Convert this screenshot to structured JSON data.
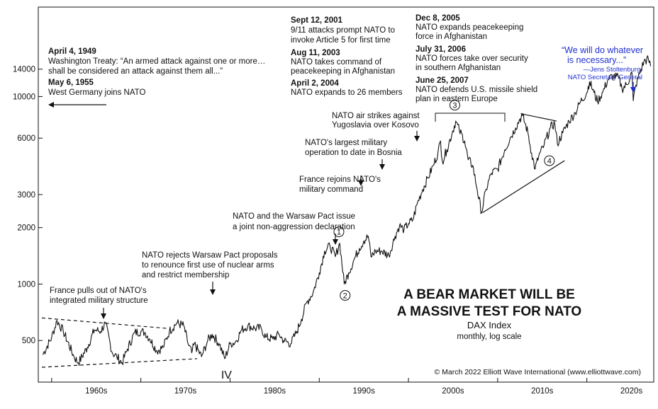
{
  "chart_data": {
    "type": "line",
    "title_lines": [
      "A BEAR MARKET WILL BE",
      "A MASSIVE TEST FOR NATO"
    ],
    "subtitle": "DAX Index",
    "subtitle2": "monthly, log scale",
    "copyright": "© March 2022 Elliott Wave International (www.elliottwave.com)",
    "log_scale": true,
    "ylim": [
      300,
      30000
    ],
    "xlim": [
      1953.5,
      2022.5
    ],
    "y_ticks": [
      {
        "value": 500,
        "label": "500"
      },
      {
        "value": 1000,
        "label": "1000"
      },
      {
        "value": 2000,
        "label": "2000"
      },
      {
        "value": 3000,
        "label": "3000"
      },
      {
        "value": 6000,
        "label": "6000"
      },
      {
        "value": 10000,
        "label": "10000"
      },
      {
        "value": 14000,
        "label": "14000"
      }
    ],
    "x_ticks": [
      1955,
      1965,
      1975,
      1985,
      1995,
      2005,
      2015
    ],
    "x_labels": [
      {
        "value": 1960,
        "label": "1960s"
      },
      {
        "value": 1970,
        "label": "1970s"
      },
      {
        "value": 1980,
        "label": "1980s"
      },
      {
        "value": 1990,
        "label": "1990s"
      },
      {
        "value": 2000,
        "label": "2000s"
      },
      {
        "value": 2010,
        "label": "2010s"
      },
      {
        "value": 2020,
        "label": "2020s"
      }
    ],
    "series": [
      {
        "x": [
          1954.0,
          1955.0,
          1955.6,
          1956.3,
          1957.5,
          1958.0,
          1959.0,
          1959.8,
          1960.5,
          1961.0,
          1961.8,
          1962.3,
          1962.9,
          1963.5,
          1964.3,
          1965.0,
          1965.5,
          1966.0,
          1966.8,
          1967.5,
          1968.2,
          1969.0,
          1969.8,
          1970.3,
          1970.7,
          1971.0,
          1971.8,
          1972.5,
          1973.0,
          1973.8,
          1974.4,
          1975.0,
          1975.6,
          1976.3,
          1977.0,
          1977.8,
          1978.5,
          1979.0,
          1979.8,
          1980.5,
          1981.0,
          1981.8,
          1982.5,
          1983.0,
          1983.6,
          1984.3,
          1985.0,
          1985.6,
          1986.2,
          1986.8,
          1987.3,
          1987.8,
          1988.3,
          1988.9,
          1989.5,
          1990.0,
          1990.5,
          1990.8,
          1991.3,
          1992.0,
          1992.8,
          1993.5,
          1994.0,
          1994.5,
          1995.0,
          1995.5,
          1996.0,
          1996.6,
          1997.2,
          1997.8,
          1998.3,
          1998.6,
          1998.8,
          1999.3,
          1999.9,
          2000.3,
          2000.7,
          2001.3,
          2001.7,
          2002.2,
          2002.7,
          2003.2,
          2003.7,
          2004.3,
          2005.0,
          2005.8,
          2006.4,
          2007.0,
          2007.5,
          2007.8,
          2008.4,
          2008.8,
          2009.2,
          2009.6,
          2010.2,
          2010.9,
          2011.4,
          2011.7,
          2012.3,
          2013.0,
          2013.7,
          2014.3,
          2015.0,
          2015.3,
          2015.8,
          2016.2,
          2016.8,
          2017.4,
          2018.0,
          2018.6,
          2018.95,
          2019.5,
          2019.9,
          2020.05,
          2020.2,
          2020.5,
          2020.9,
          2021.4,
          2021.9,
          2022.15
        ],
        "y": [
          420,
          520,
          640,
          560,
          410,
          380,
          460,
          570,
          560,
          620,
          430,
          410,
          380,
          450,
          550,
          560,
          550,
          510,
          440,
          460,
          560,
          620,
          600,
          480,
          430,
          480,
          410,
          500,
          540,
          480,
          400,
          480,
          490,
          570,
          600,
          580,
          580,
          520,
          510,
          540,
          500,
          480,
          560,
          650,
          800,
          900,
          1150,
          1500,
          1600,
          1400,
          1650,
          1000,
          1150,
          1350,
          1550,
          1700,
          1800,
          1400,
          1500,
          1500,
          1420,
          1800,
          2050,
          1950,
          2100,
          2200,
          2700,
          3200,
          3700,
          4300,
          5000,
          5800,
          4500,
          5200,
          6400,
          7400,
          6600,
          5800,
          4600,
          4300,
          3200,
          2400,
          3200,
          3900,
          4100,
          5200,
          6000,
          6800,
          7600,
          7900,
          6400,
          5000,
          4100,
          4800,
          5500,
          6800,
          7200,
          5600,
          6400,
          7400,
          8200,
          9400,
          10500,
          12000,
          10500,
          9400,
          10600,
          12400,
          12900,
          12500,
          11000,
          11600,
          13000,
          13500,
          9500,
          11500,
          13200,
          15400,
          15800,
          14500
        ]
      }
    ],
    "wave_labels": [
      {
        "label": "1",
        "x": 1987.2,
        "y": 1900
      },
      {
        "label": "2",
        "x": 1987.9,
        "y": 870
      },
      {
        "label": "3",
        "x": 2000.2,
        "y": 9000
      },
      {
        "label": "4",
        "x": 2010.8,
        "y": 4550
      }
    ],
    "wave_label_IV": {
      "label": "IV",
      "x": 1974.6,
      "y": 330
    },
    "annotations": [
      {
        "bold": "April 4, 1949",
        "lines": [
          "Washington Treaty: “An armed attack against one or more…",
          "shall be considered an attack against them all...”"
        ]
      },
      {
        "bold": "May 6, 1955",
        "lines": [
          "West Germany joins NATO"
        ]
      },
      {
        "bold": "Sept 12, 2001",
        "lines": [
          "9/11 attacks prompt NATO to",
          "invoke Article 5 for first time"
        ]
      },
      {
        "bold": "Aug 11, 2003",
        "lines": [
          "NATO takes command of",
          "peacekeeping in Afghanistan"
        ]
      },
      {
        "bold": "April 2, 2004",
        "lines": [
          "NATO expands to 26 members"
        ]
      },
      {
        "bold": "Dec 8, 2005",
        "lines": [
          "NATO expands peacekeeping",
          "force in Afghanistan"
        ]
      },
      {
        "bold": "July 31, 2006",
        "lines": [
          "NATO forces take over security",
          "in southern Afghanistan"
        ]
      },
      {
        "bold": "June 25, 2007",
        "lines": [
          "NATO defends U.S. missile shield",
          "plan in eastern Europe"
        ]
      },
      {
        "bold": "",
        "lines": [
          "NATO air strikes against",
          "Yugoslavia over Kosovo"
        ]
      },
      {
        "bold": "",
        "lines": [
          "NATO's largest military",
          "operation to date in Bosnia"
        ]
      },
      {
        "bold": "",
        "lines": [
          "France rejoins NATO's",
          "military command"
        ]
      },
      {
        "bold": "",
        "lines": [
          "NATO and the Warsaw Pact issue",
          "a joint non-aggression declaration"
        ]
      },
      {
        "bold": "",
        "lines": [
          "NATO rejects Warsaw Pact proposals",
          "to renounce first use of nuclear arms",
          "and restrict membership"
        ]
      },
      {
        "bold": "",
        "lines": [
          "France pulls out of NATO's",
          "integrated military structure"
        ]
      }
    ],
    "quote": {
      "lines": [
        "“We will do whatever",
        "is necessary...”"
      ],
      "attribution": [
        "—Jens Stoltenburg,",
        "NATO Secretary General"
      ]
    },
    "colors": {
      "series": "#111111",
      "quote": "#1f2fcf",
      "axis": "#111111"
    }
  }
}
